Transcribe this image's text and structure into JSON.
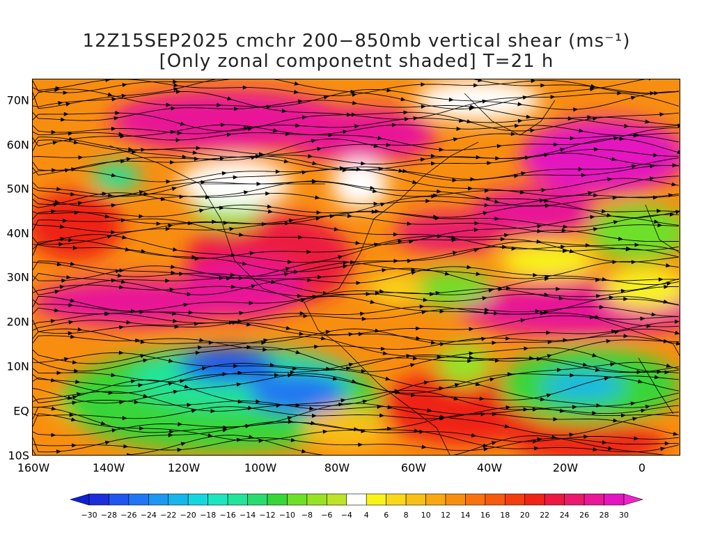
{
  "title": {
    "line1": "12Z15SEP2025 cmchr 200−850mb vertical shear (ms⁻¹)",
    "line2": "[Only zonal componetnt shaded] T=21 h"
  },
  "map": {
    "lat_labels": [
      "70N",
      "60N",
      "50N",
      "40N",
      "30N",
      "20N",
      "10N",
      "EQ",
      "10S"
    ],
    "lon_labels": [
      "160W",
      "140W",
      "120W",
      "100W",
      "80W",
      "60W",
      "40W",
      "20W",
      "0"
    ],
    "lon_range": [
      -160,
      10
    ],
    "lat_range": [
      -10,
      75
    ]
  },
  "colorbar": {
    "labels": [
      "-30",
      "-28",
      "-26",
      "-24",
      "-22",
      "-20",
      "-18",
      "-16",
      "-14",
      "-12",
      "-10",
      "-8",
      "-6",
      "-4",
      "4",
      "6",
      "8",
      "10",
      "12",
      "14",
      "16",
      "18",
      "20",
      "22",
      "24",
      "26",
      "28",
      "30"
    ],
    "colors": [
      "#1d2fd8",
      "#1f57ee",
      "#2177f2",
      "#1d98f0",
      "#16b6ea",
      "#16d6e0",
      "#1ce6c0",
      "#22e49a",
      "#28dc70",
      "#38d638",
      "#6ee02a",
      "#98e226",
      "#bce428",
      "#ffffff",
      "#f8f41a",
      "#f8d81a",
      "#f8c016",
      "#f8a812",
      "#f88e10",
      "#f8720e",
      "#f55a0e",
      "#f23e10",
      "#ef2418",
      "#ec1a40",
      "#ea1a6c",
      "#e81896",
      "#e416c0"
    ]
  }
}
